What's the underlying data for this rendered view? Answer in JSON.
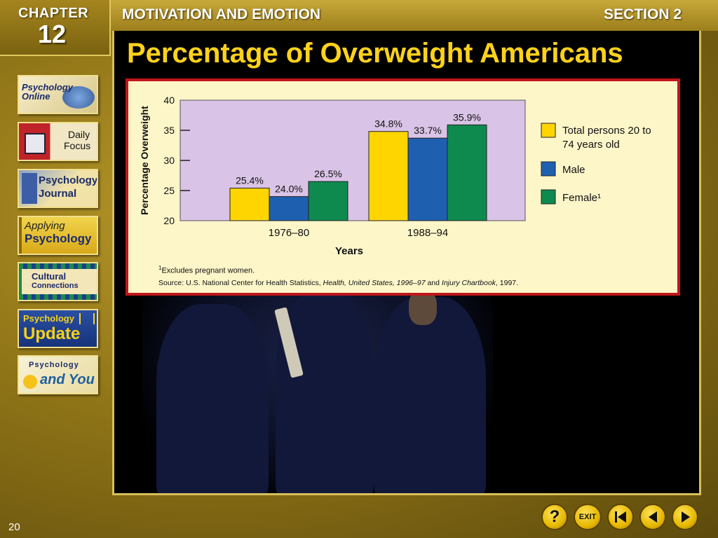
{
  "header": {
    "chapter_word": "CHAPTER",
    "chapter_number": "12",
    "title": "MOTIVATION AND EMOTION",
    "section": "SECTION 2"
  },
  "slide": {
    "title": "Percentage of Overweight Americans",
    "page_number": "20"
  },
  "sidebar": {
    "items": [
      {
        "label": "Psychology Online",
        "icon": "psychology-online-icon"
      },
      {
        "label_line1": "Daily",
        "label_line2": "Focus",
        "icon": "daily-focus-icon"
      },
      {
        "label": "Psychology Journal",
        "icon": "psychology-journal-icon"
      },
      {
        "label_line1": "Applying",
        "label_line2": "Psychology",
        "icon": "applying-psychology-icon"
      },
      {
        "label_line1": "Cultural",
        "label_line2": "Connections",
        "icon": "cultural-connections-icon"
      },
      {
        "label_line1": "Psychology",
        "label_line2": "Update",
        "icon": "psychology-update-icon"
      },
      {
        "label_line1": "Psychology",
        "label_line2": "and You",
        "icon": "psychology-and-you-icon"
      }
    ]
  },
  "nav": {
    "help": "?",
    "exit": "EXIT",
    "first_icon": "first-slide-icon",
    "prev_icon": "previous-slide-icon",
    "next_icon": "next-slide-icon"
  },
  "chart_data": {
    "type": "bar",
    "categories": [
      "1976–80",
      "1988–94"
    ],
    "series": [
      {
        "name": "Total persons 20 to 74 years old",
        "values": [
          25.4,
          34.8
        ],
        "color": "#ffd500"
      },
      {
        "name": "Male",
        "values": [
          24.0,
          33.7
        ],
        "color": "#1f5fb0"
      },
      {
        "name": "Female¹",
        "values": [
          26.5,
          35.9
        ],
        "color": "#0e8a4e"
      }
    ],
    "value_labels": [
      [
        "25.4%",
        "34.8%"
      ],
      [
        "24.0%",
        "33.7%"
      ],
      [
        "26.5%",
        "35.9%"
      ]
    ],
    "ylabel": "Percentage Overweight",
    "xlabel": "Years",
    "yticks": [
      20,
      25,
      30,
      35,
      40
    ],
    "ylim": [
      20,
      40
    ],
    "grid": false,
    "plot_bg": "#d9c3e6",
    "legend_position": "right",
    "footnote_marker": "1",
    "footnote": "Excludes pregnant women.",
    "source_prefix": "Source:  U.S. National Center for Health Statistics, ",
    "source_title1": "Health, United States, 1996–97",
    "source_mid": " and ",
    "source_title2": "Injury Chartbook",
    "source_suffix": ", 1997."
  }
}
